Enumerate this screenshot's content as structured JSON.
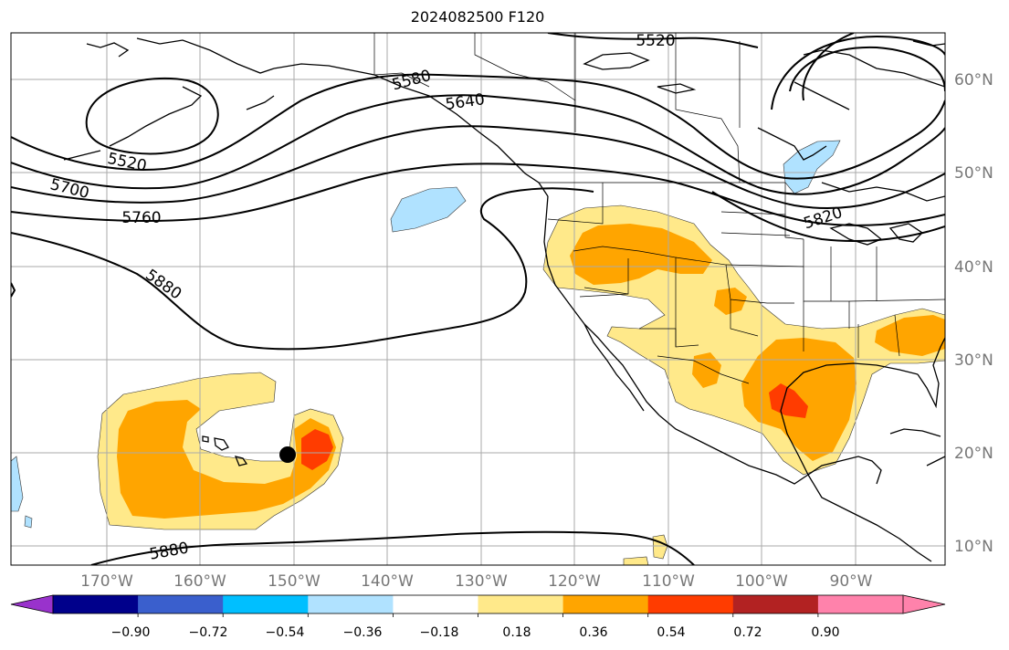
{
  "title": "2024082500 F120",
  "colors": {
    "gridline": "#aaaaaa",
    "contour": "#000000",
    "coast": "#000000",
    "pos_1": "#ffe98a",
    "pos_2": "#ffa500",
    "pos_3": "#ff3c00",
    "neg_1": "#b0e2ff"
  },
  "map": {
    "longitude_labels": [
      "170°W",
      "160°W",
      "150°W",
      "140°W",
      "130°W",
      "120°W",
      "110°W",
      "100°W",
      "90°W"
    ],
    "latitude_labels": [
      "60°N",
      "50°N",
      "40°N",
      "30°N",
      "20°N",
      "10°N"
    ],
    "contour_labels": [
      "5520",
      "5580",
      "5640",
      "5520",
      "5700",
      "5760",
      "5880",
      "5820",
      "5880"
    ],
    "marker": "storm-center"
  },
  "colorbar": {
    "colors": [
      "#9932cc",
      "#00008b",
      "#3a5fcd",
      "#00bfff",
      "#b0e2ff",
      "#ffffff",
      "#ffe98a",
      "#ffa500",
      "#ff3c00",
      "#b22222",
      "#ff82ab",
      "#ff82ab"
    ],
    "tick_labels": [
      "−0.90",
      "−0.72",
      "−0.54",
      "−0.36",
      "−0.18",
      "0.18",
      "0.36",
      "0.54",
      "0.72",
      "0.90"
    ]
  }
}
